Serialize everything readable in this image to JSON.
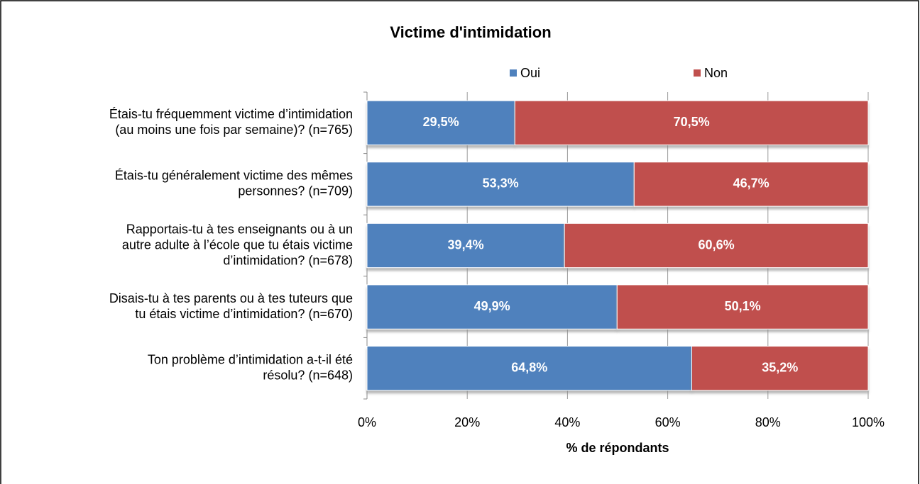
{
  "chart_data": {
    "type": "stacked-barh",
    "title": "Victime d'intimidation",
    "x_label": "% de répondants",
    "categories": [
      [
        "Étais-tu fréquemment victime d’intimidation",
        "(au moins une fois par semaine)? (n=765)"
      ],
      [
        "Étais-tu généralement victime des mêmes",
        "personnes? (n=709)"
      ],
      [
        "Rapportais-tu à tes enseignants ou à un",
        "autre adulte à l’école que tu étais victime",
        "d’intimidation? (n=678)"
      ],
      [
        "Disais-tu à tes parents ou à tes tuteurs que",
        "tu étais victime d’intimidation? (n=670)"
      ],
      [
        "Ton problème d’intimidation a-t-il été",
        "résolu? (n=648)"
      ]
    ],
    "series": [
      {
        "name": "Oui",
        "color": "#4f81bd",
        "values": [
          29.5,
          53.3,
          39.4,
          49.9,
          64.8
        ],
        "value_labels": [
          "29,5%",
          "53,3%",
          "39,4%",
          "49,9%",
          "64,8%"
        ]
      },
      {
        "name": "Non",
        "color": "#c0504d",
        "values": [
          70.5,
          46.7,
          60.6,
          50.1,
          35.2
        ],
        "value_labels": [
          "70,5%",
          "46,7%",
          "60,6%",
          "50,1%",
          "35,2%"
        ]
      }
    ],
    "xlim": [
      0,
      100
    ],
    "xticks": [
      {
        "value": 0,
        "label": "0%"
      },
      {
        "value": 20,
        "label": "20%"
      },
      {
        "value": 40,
        "label": "40%"
      },
      {
        "value": 60,
        "label": "60%"
      },
      {
        "value": 80,
        "label": "80%"
      },
      {
        "value": 100,
        "label": "100%"
      }
    ],
    "grid": true,
    "legend": "top"
  }
}
